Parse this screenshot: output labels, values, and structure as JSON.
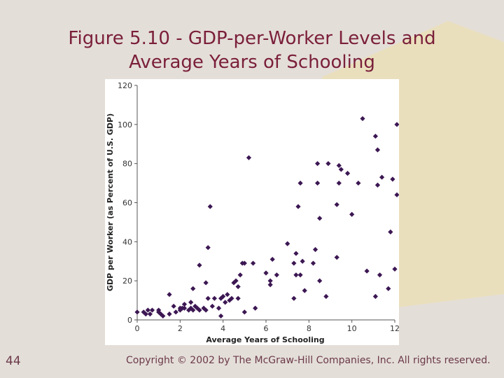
{
  "slide": {
    "title_line1": "Figure 5.10 - GDP-per-Worker Levels and",
    "title_line2": "Average Years of Schooling",
    "page_number": "44",
    "copyright": "Copyright © 2002 by The McGraw-Hill Companies, Inc. All rights reserved.",
    "colors": {
      "title": "#7a1f3a",
      "background": "#e4ded8",
      "accent_shape": "#eadfbd",
      "marker": "#3c1753"
    }
  },
  "chart_data": {
    "type": "scatter",
    "xlabel": "Average Years of Schooling",
    "ylabel": "GDP per Worker (as Percent of U.S. GDP)",
    "xlim": [
      0,
      12
    ],
    "ylim": [
      0,
      120
    ],
    "x_ticks": [
      0,
      2,
      4,
      6,
      8,
      10,
      12
    ],
    "y_ticks": [
      0,
      20,
      40,
      60,
      80,
      100,
      120
    ],
    "grid": false,
    "marker": "diamond",
    "points": [
      {
        "x": 0.0,
        "y": 4
      },
      {
        "x": 0.3,
        "y": 4
      },
      {
        "x": 0.4,
        "y": 3
      },
      {
        "x": 0.5,
        "y": 5
      },
      {
        "x": 0.6,
        "y": 3
      },
      {
        "x": 0.7,
        "y": 5
      },
      {
        "x": 1.0,
        "y": 4
      },
      {
        "x": 1.0,
        "y": 5
      },
      {
        "x": 1.1,
        "y": 3
      },
      {
        "x": 1.2,
        "y": 2
      },
      {
        "x": 1.5,
        "y": 3
      },
      {
        "x": 1.5,
        "y": 13
      },
      {
        "x": 1.7,
        "y": 7
      },
      {
        "x": 1.8,
        "y": 4
      },
      {
        "x": 2.0,
        "y": 6
      },
      {
        "x": 2.0,
        "y": 5
      },
      {
        "x": 2.1,
        "y": 6
      },
      {
        "x": 2.2,
        "y": 8
      },
      {
        "x": 2.2,
        "y": 6
      },
      {
        "x": 2.4,
        "y": 5
      },
      {
        "x": 2.5,
        "y": 9
      },
      {
        "x": 2.5,
        "y": 6
      },
      {
        "x": 2.6,
        "y": 5
      },
      {
        "x": 2.6,
        "y": 16
      },
      {
        "x": 2.7,
        "y": 7
      },
      {
        "x": 2.8,
        "y": 6
      },
      {
        "x": 2.9,
        "y": 5
      },
      {
        "x": 2.9,
        "y": 28
      },
      {
        "x": 3.1,
        "y": 6
      },
      {
        "x": 3.2,
        "y": 5
      },
      {
        "x": 3.2,
        "y": 19
      },
      {
        "x": 3.3,
        "y": 37
      },
      {
        "x": 3.3,
        "y": 11
      },
      {
        "x": 3.4,
        "y": 58
      },
      {
        "x": 3.5,
        "y": 7
      },
      {
        "x": 3.6,
        "y": 11
      },
      {
        "x": 3.8,
        "y": 6
      },
      {
        "x": 3.9,
        "y": 11
      },
      {
        "x": 3.9,
        "y": 2
      },
      {
        "x": 4.0,
        "y": 12
      },
      {
        "x": 4.1,
        "y": 9
      },
      {
        "x": 4.2,
        "y": 13
      },
      {
        "x": 4.3,
        "y": 10
      },
      {
        "x": 4.4,
        "y": 11
      },
      {
        "x": 4.5,
        "y": 19
      },
      {
        "x": 4.6,
        "y": 20
      },
      {
        "x": 4.7,
        "y": 17
      },
      {
        "x": 4.7,
        "y": 11
      },
      {
        "x": 4.8,
        "y": 23
      },
      {
        "x": 4.9,
        "y": 29
      },
      {
        "x": 5.0,
        "y": 4
      },
      {
        "x": 5.0,
        "y": 29
      },
      {
        "x": 5.2,
        "y": 83
      },
      {
        "x": 5.4,
        "y": 29
      },
      {
        "x": 5.5,
        "y": 6
      },
      {
        "x": 6.0,
        "y": 24
      },
      {
        "x": 6.2,
        "y": 20
      },
      {
        "x": 6.2,
        "y": 18
      },
      {
        "x": 6.3,
        "y": 31
      },
      {
        "x": 6.5,
        "y": 23
      },
      {
        "x": 7.0,
        "y": 39
      },
      {
        "x": 7.3,
        "y": 29
      },
      {
        "x": 7.3,
        "y": 11
      },
      {
        "x": 7.4,
        "y": 23
      },
      {
        "x": 7.4,
        "y": 34
      },
      {
        "x": 7.5,
        "y": 58
      },
      {
        "x": 7.6,
        "y": 70
      },
      {
        "x": 7.6,
        "y": 23
      },
      {
        "x": 7.7,
        "y": 30
      },
      {
        "x": 7.8,
        "y": 15
      },
      {
        "x": 8.2,
        "y": 29
      },
      {
        "x": 8.3,
        "y": 36
      },
      {
        "x": 8.4,
        "y": 80
      },
      {
        "x": 8.4,
        "y": 70
      },
      {
        "x": 8.5,
        "y": 52
      },
      {
        "x": 8.5,
        "y": 20
      },
      {
        "x": 8.8,
        "y": 12
      },
      {
        "x": 8.9,
        "y": 80
      },
      {
        "x": 9.3,
        "y": 32
      },
      {
        "x": 9.3,
        "y": 59
      },
      {
        "x": 9.4,
        "y": 79
      },
      {
        "x": 9.4,
        "y": 70
      },
      {
        "x": 9.5,
        "y": 77
      },
      {
        "x": 9.8,
        "y": 75
      },
      {
        "x": 10.0,
        "y": 54
      },
      {
        "x": 10.3,
        "y": 70
      },
      {
        "x": 10.5,
        "y": 103
      },
      {
        "x": 10.7,
        "y": 25
      },
      {
        "x": 11.1,
        "y": 94
      },
      {
        "x": 11.1,
        "y": 12
      },
      {
        "x": 11.2,
        "y": 69
      },
      {
        "x": 11.2,
        "y": 87
      },
      {
        "x": 11.3,
        "y": 23
      },
      {
        "x": 11.4,
        "y": 73
      },
      {
        "x": 11.7,
        "y": 16
      },
      {
        "x": 11.8,
        "y": 45
      },
      {
        "x": 11.9,
        "y": 72
      },
      {
        "x": 12.0,
        "y": 26
      },
      {
        "x": 12.3,
        "y": 64
      },
      {
        "x": 12.3,
        "y": 100
      }
    ]
  }
}
